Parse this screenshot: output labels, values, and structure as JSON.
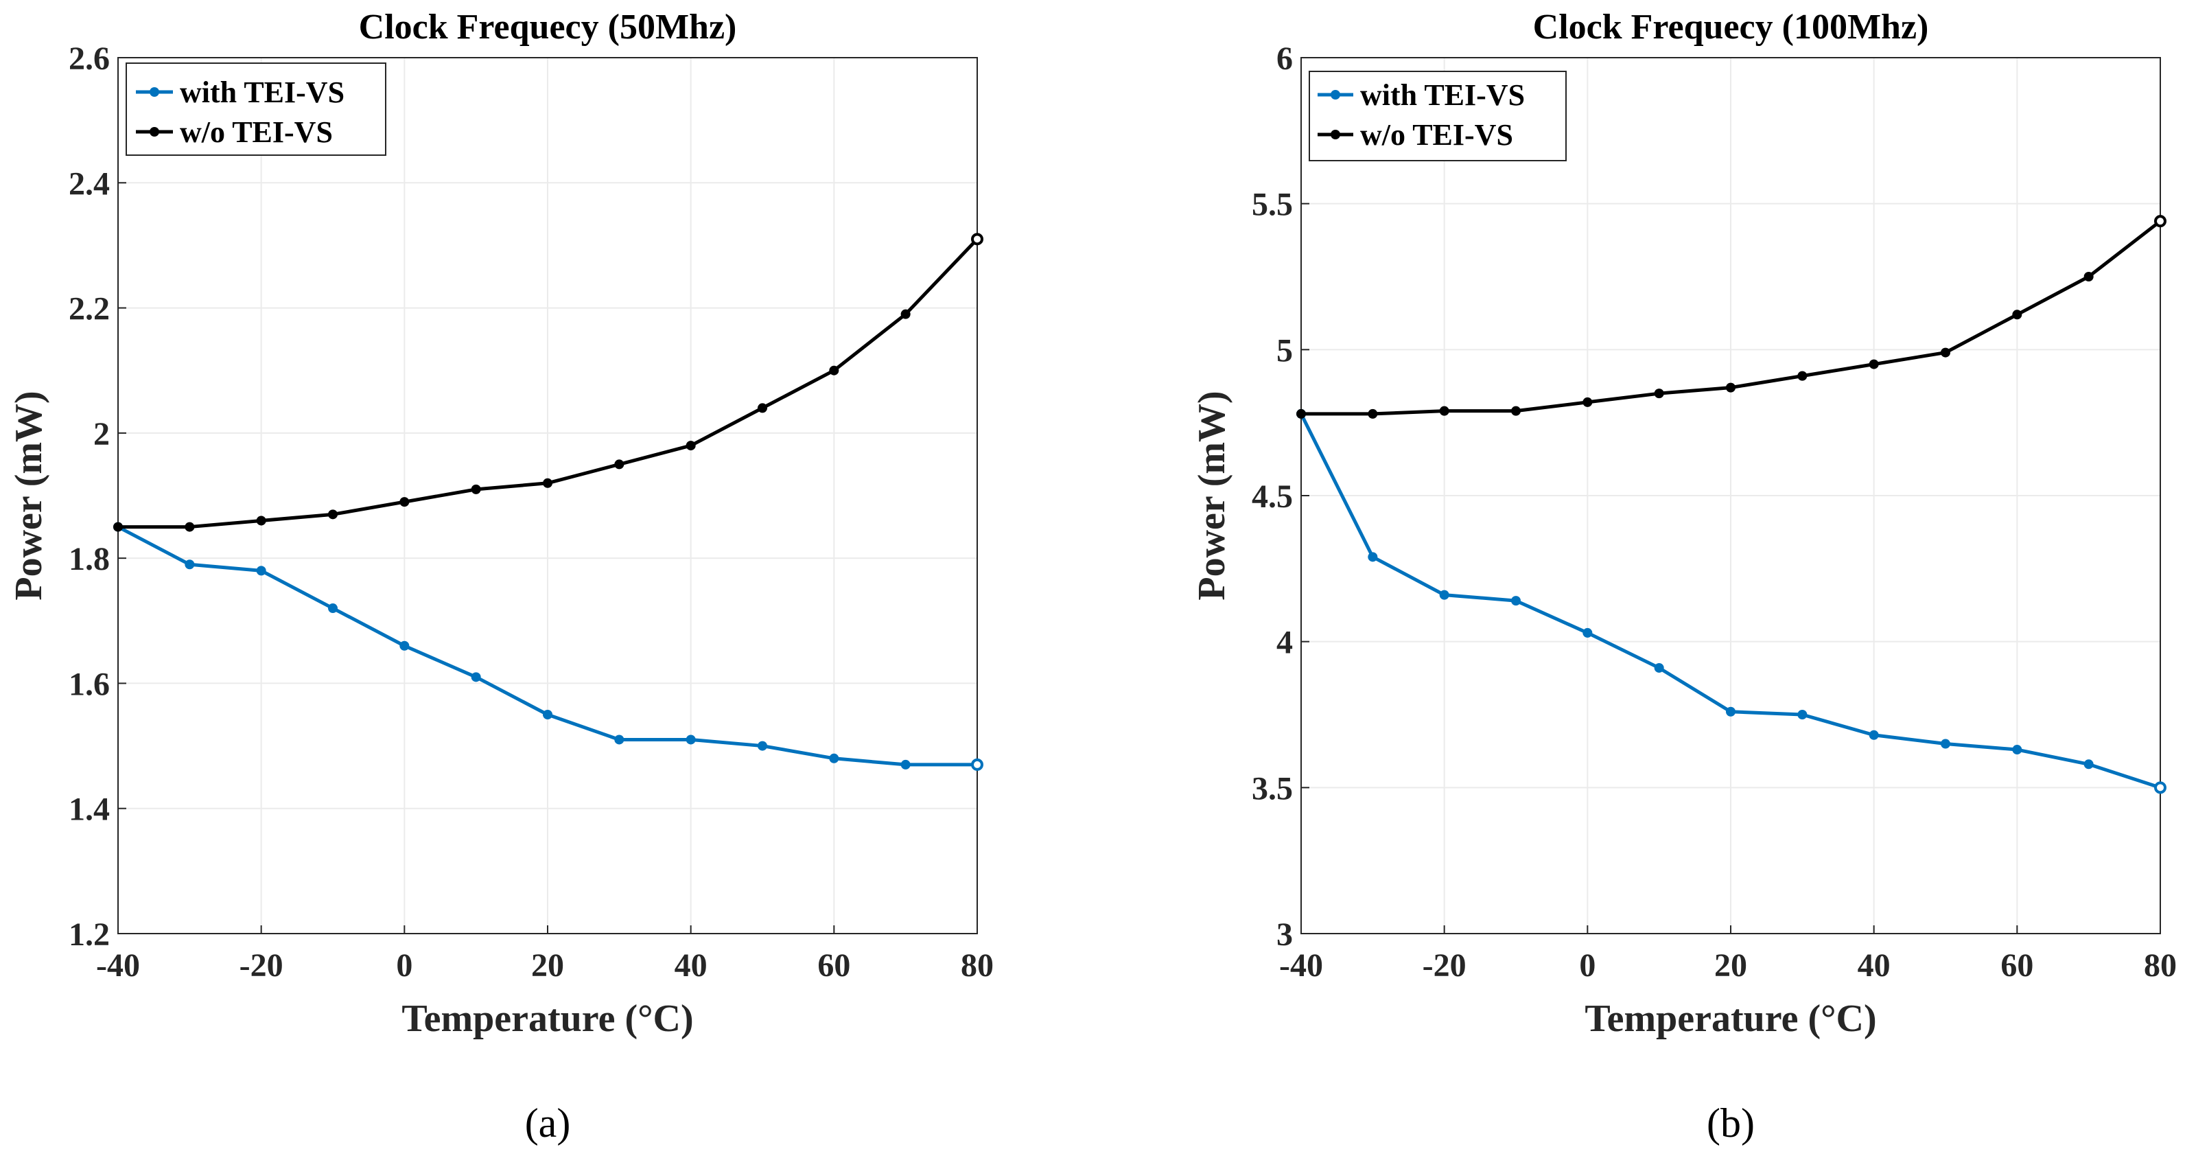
{
  "chart_data": [
    {
      "type": "line",
      "title": "Clock Frequecy (50Mhz)",
      "xlabel": "Temperature (°C)",
      "ylabel": "Power (mW)",
      "xlim": [
        -40,
        80
      ],
      "ylim": [
        1.2,
        2.6
      ],
      "xticks": [
        -40,
        -20,
        0,
        20,
        40,
        60,
        80
      ],
      "yticks": [
        1.2,
        1.4,
        1.6,
        1.8,
        2,
        2.2,
        2.4,
        2.6
      ],
      "ytick_labels": [
        "1.2",
        "1.4",
        "1.6",
        "1.8",
        "2",
        "2.2",
        "2.4",
        "2.6"
      ],
      "grid": true,
      "legend_position": "top-left",
      "x": [
        -40,
        -30,
        -20,
        -10,
        0,
        10,
        20,
        30,
        40,
        50,
        60,
        70,
        80
      ],
      "series": [
        {
          "name": "with TEI-VS",
          "color": "#0072bd",
          "values": [
            1.85,
            1.79,
            1.78,
            1.72,
            1.66,
            1.61,
            1.55,
            1.51,
            1.51,
            1.5,
            1.48,
            1.47,
            1.47
          ]
        },
        {
          "name": "w/o TEI-VS",
          "color": "#000000",
          "values": [
            1.85,
            1.85,
            1.86,
            1.87,
            1.89,
            1.91,
            1.92,
            1.95,
            1.98,
            2.04,
            2.1,
            2.19,
            2.31
          ]
        }
      ],
      "caption": "(a)"
    },
    {
      "type": "line",
      "title": "Clock Frequecy (100Mhz)",
      "xlabel": "Temperature (°C)",
      "ylabel": "Power (mW)",
      "xlim": [
        -40,
        80
      ],
      "ylim": [
        3,
        6
      ],
      "xticks": [
        -40,
        -20,
        0,
        20,
        40,
        60,
        80
      ],
      "yticks": [
        3,
        3.5,
        4,
        4.5,
        5,
        5.5,
        6
      ],
      "ytick_labels": [
        "3",
        "3.5",
        "4",
        "4.5",
        "5",
        "5.5",
        "6"
      ],
      "grid": true,
      "legend_position": "top-left",
      "x": [
        -40,
        -30,
        -20,
        -10,
        0,
        10,
        20,
        30,
        40,
        50,
        60,
        70,
        80
      ],
      "series": [
        {
          "name": "with TEI-VS",
          "color": "#0072bd",
          "values": [
            4.78,
            4.29,
            4.16,
            4.14,
            4.03,
            3.91,
            3.76,
            3.75,
            3.68,
            3.65,
            3.63,
            3.58,
            3.5
          ]
        },
        {
          "name": "w/o TEI-VS",
          "color": "#000000",
          "values": [
            4.78,
            4.78,
            4.79,
            4.79,
            4.82,
            4.85,
            4.87,
            4.91,
            4.95,
            4.99,
            5.12,
            5.25,
            5.44
          ]
        }
      ],
      "caption": "(b)"
    }
  ]
}
